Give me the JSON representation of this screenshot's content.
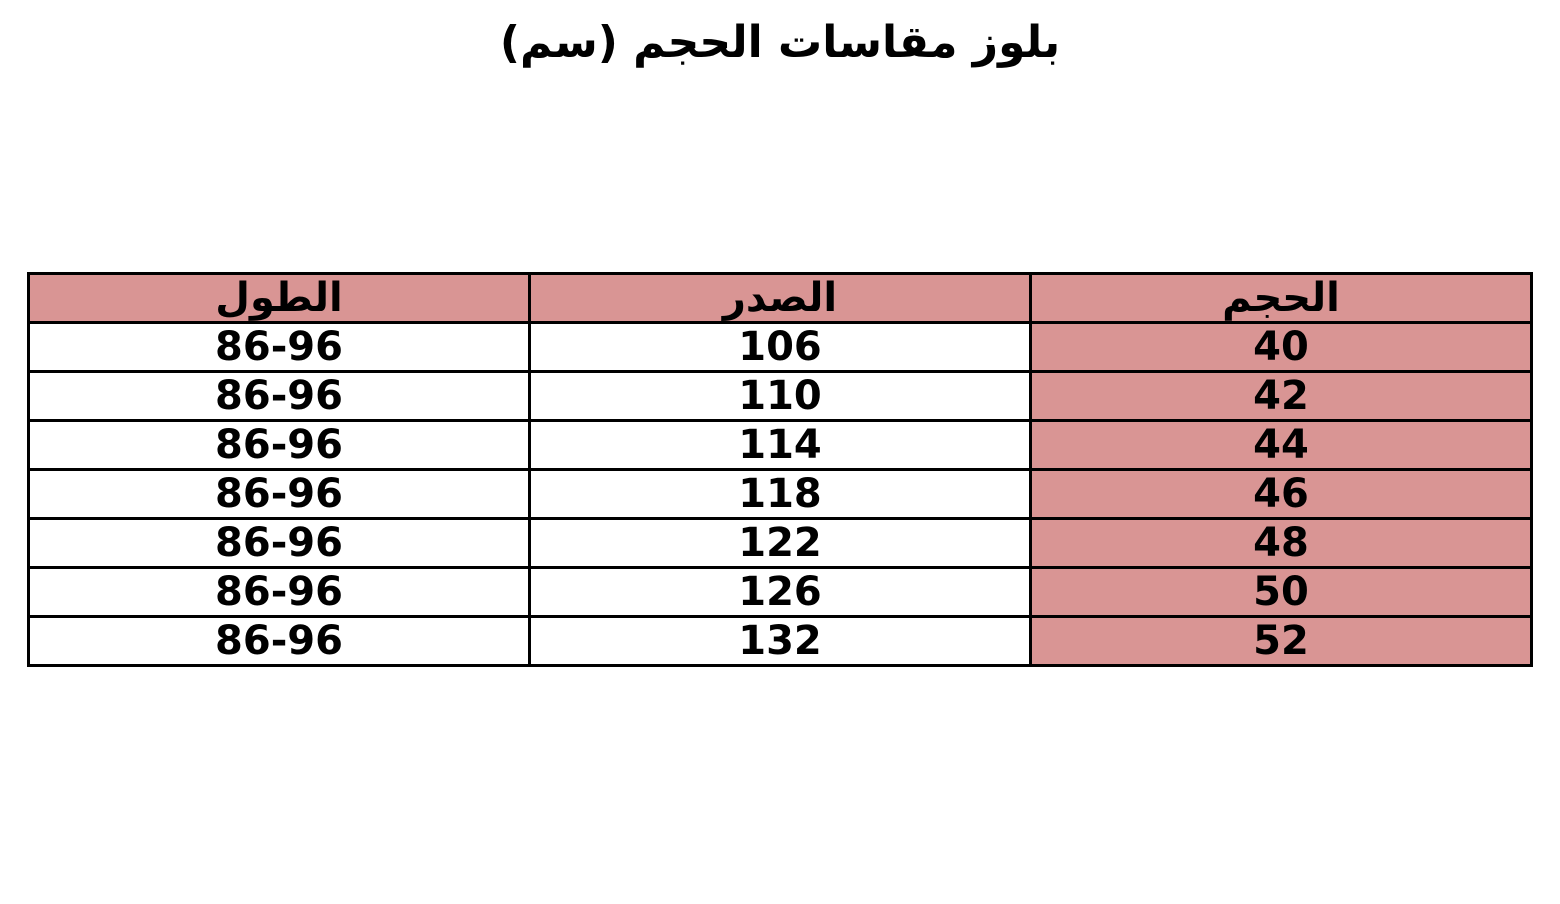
{
  "title": "بلوز مقاسات الحجم (سم)",
  "table": {
    "columns": [
      {
        "key": "size",
        "label": "الحجم"
      },
      {
        "key": "chest",
        "label": "الصدر"
      },
      {
        "key": "length",
        "label": "الطول"
      }
    ],
    "rows": [
      {
        "size": "40",
        "chest": "106",
        "length": "86-96"
      },
      {
        "size": "42",
        "chest": "110",
        "length": "86-96"
      },
      {
        "size": "44",
        "chest": "114",
        "length": "86-96"
      },
      {
        "size": "46",
        "chest": "118",
        "length": "86-96"
      },
      {
        "size": "48",
        "chest": "122",
        "length": "86-96"
      },
      {
        "size": "50",
        "chest": "126",
        "length": "86-96"
      },
      {
        "size": "52",
        "chest": "132",
        "length": "86-96"
      }
    ]
  },
  "colors": {
    "header_bg": "#D99594",
    "size_column_bg": "#D99594",
    "border": "#000000",
    "text": "#000000",
    "page_bg": "#FFFFFF"
  },
  "chart_data": {
    "type": "table",
    "title": "بلوز مقاسات الحجم (سم)",
    "columns": [
      "الحجم",
      "الصدر",
      "الطول"
    ],
    "rows": [
      [
        "40",
        "106",
        "86-96"
      ],
      [
        "42",
        "110",
        "86-96"
      ],
      [
        "44",
        "114",
        "86-96"
      ],
      [
        "46",
        "118",
        "86-96"
      ],
      [
        "48",
        "122",
        "86-96"
      ],
      [
        "50",
        "126",
        "86-96"
      ],
      [
        "52",
        "132",
        "86-96"
      ]
    ]
  }
}
